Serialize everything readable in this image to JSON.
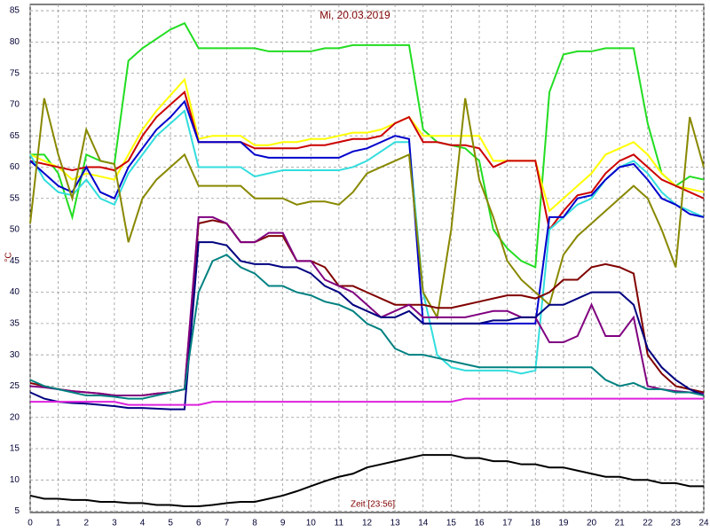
{
  "chart_data": {
    "type": "line",
    "title": "Mi, 20.03.2019",
    "y_label": "°C",
    "x_label": "Zeit [23:56]",
    "x": [
      0,
      0.5,
      1,
      1.5,
      2,
      2.5,
      3,
      3.5,
      4,
      4.5,
      5,
      5.5,
      6,
      6.5,
      7,
      7.5,
      8,
      8.5,
      9,
      9.5,
      10,
      10.5,
      11,
      11.5,
      12,
      12.5,
      13,
      13.5,
      14,
      14.5,
      15,
      15.5,
      16,
      16.5,
      17,
      17.5,
      18,
      18.5,
      19,
      19.5,
      20,
      20.5,
      21,
      21.5,
      22,
      22.5,
      23,
      23.5,
      24
    ],
    "xlim": [
      0,
      24
    ],
    "xticks": [
      0,
      1,
      2,
      3,
      4,
      5,
      6,
      7,
      8,
      9,
      10,
      11,
      12,
      13,
      14,
      15,
      16,
      17,
      18,
      19,
      20,
      21,
      22,
      23,
      24
    ],
    "ylim": [
      4.8,
      86
    ],
    "yticks": [
      5,
      10,
      15,
      20,
      25,
      30,
      35,
      40,
      45,
      50,
      55,
      60,
      65,
      70,
      75,
      80,
      85
    ],
    "grid": true,
    "series": [
      {
        "color": "#22dd22",
        "values": [
          62,
          62,
          59,
          52,
          62,
          61,
          60.5,
          77,
          79,
          80.5,
          82,
          83,
          79,
          79,
          79,
          79,
          79,
          78.5,
          78.5,
          78.5,
          78.5,
          79,
          79,
          79.5,
          79.5,
          79.5,
          79.5,
          79.5,
          66,
          64,
          63.5,
          63,
          61,
          50,
          47,
          45,
          44,
          72,
          78,
          78.5,
          78.5,
          79,
          79,
          79,
          67,
          59,
          57,
          58.5,
          58
        ]
      },
      {
        "color": "#ffff00",
        "values": [
          62,
          61,
          60,
          58,
          59,
          58.5,
          58,
          62,
          66,
          69,
          71.5,
          74,
          64.5,
          65,
          65,
          65,
          63.5,
          63.5,
          64,
          64,
          64.5,
          64.5,
          65,
          65.5,
          65.5,
          66,
          67,
          68,
          65,
          65,
          65,
          65,
          65,
          61,
          61,
          61,
          61,
          53,
          55,
          57,
          59,
          62,
          63,
          64,
          62,
          59,
          57,
          56.5,
          56
        ]
      },
      {
        "color": "#cc0000",
        "values": [
          61,
          60.5,
          60,
          59.5,
          60,
          60,
          59.5,
          61,
          65,
          68,
          70,
          72,
          64,
          64,
          64,
          64,
          63,
          63,
          63,
          63,
          63.5,
          63.5,
          64,
          64.5,
          64.5,
          65,
          67,
          68,
          64,
          64,
          63.5,
          63.5,
          63,
          60,
          61,
          61,
          61,
          50,
          53,
          55.5,
          56,
          59,
          61,
          62,
          60,
          58,
          57,
          56,
          55
        ]
      },
      {
        "color": "#33dddd",
        "values": [
          62,
          58,
          56,
          55.5,
          58,
          55,
          54,
          59,
          62,
          65,
          67,
          69,
          60,
          60,
          60,
          60,
          58.5,
          59,
          59.5,
          59.5,
          59.5,
          59.5,
          59.5,
          60,
          61,
          62.5,
          64,
          64,
          40,
          30,
          28,
          27.5,
          27.5,
          27.5,
          27.5,
          27,
          27.5,
          50,
          52,
          54,
          55,
          58,
          60,
          61,
          59,
          56,
          54,
          53,
          52
        ]
      },
      {
        "color": "#0000cc",
        "values": [
          61,
          59,
          57,
          56,
          60,
          56,
          55,
          60,
          63,
          66,
          68,
          70.5,
          64,
          64,
          64,
          64,
          62,
          61.5,
          61.5,
          61.5,
          61.5,
          61.5,
          61.5,
          62.5,
          63,
          64,
          65,
          64.5,
          35,
          35,
          35,
          35,
          35,
          35,
          35,
          35,
          35,
          52,
          52,
          55,
          55.5,
          58,
          60,
          60.5,
          58,
          55,
          54,
          52.5,
          52
        ]
      },
      {
        "color": "#888800",
        "values": [
          51,
          71,
          62,
          55,
          66,
          61,
          60.5,
          48,
          55,
          58,
          60,
          62,
          57,
          57,
          57,
          57,
          55,
          55,
          55,
          54,
          54.5,
          54.5,
          54,
          56,
          59,
          60,
          61,
          62,
          40,
          36,
          50,
          71,
          58,
          52,
          45,
          42,
          40,
          38,
          46,
          49,
          51,
          53,
          55,
          57,
          55,
          50,
          44,
          68,
          60
        ]
      },
      {
        "color": "#800000",
        "values": [
          25.5,
          25,
          24.5,
          24.2,
          24,
          23.8,
          23.5,
          23.5,
          23.5,
          23.8,
          24,
          24.5,
          51,
          51.5,
          51,
          48,
          48,
          49,
          49,
          45,
          45,
          44,
          41,
          41,
          40,
          39,
          38,
          38,
          38,
          37.5,
          37.5,
          38,
          38.5,
          39,
          39.5,
          39.5,
          39,
          40,
          42,
          42,
          44,
          44.5,
          44,
          43,
          30,
          27,
          25,
          24.5,
          24
        ]
      },
      {
        "color": "#800080",
        "values": [
          25,
          24.8,
          24.5,
          24.2,
          24,
          23.8,
          23.5,
          23.5,
          23.5,
          23.8,
          24,
          24.5,
          52,
          52,
          51,
          48,
          48,
          49.5,
          49.5,
          45,
          45,
          42,
          41,
          40,
          38,
          36,
          37,
          38,
          36,
          36,
          36,
          36,
          36.5,
          37,
          37,
          36,
          36,
          32,
          32,
          33,
          38,
          33,
          33,
          36,
          25,
          24.5,
          24.2,
          24,
          23.8
        ]
      },
      {
        "color": "#000080",
        "values": [
          24,
          23,
          22.5,
          22.3,
          22.2,
          22,
          21.8,
          21.5,
          21.5,
          21.4,
          21.3,
          21.3,
          48,
          48,
          47.5,
          45,
          44.5,
          44.5,
          44,
          44,
          43,
          41,
          40,
          38,
          37,
          36,
          36,
          37,
          35,
          35,
          35,
          35,
          35,
          35.5,
          35.5,
          36,
          36,
          38,
          38,
          39,
          40,
          40,
          40,
          38,
          31,
          28,
          26,
          24.5,
          23.5
        ]
      },
      {
        "color": "#008080",
        "values": [
          26,
          25,
          24.5,
          24,
          23.5,
          23.5,
          23.3,
          23,
          23,
          23.5,
          24,
          24.5,
          40,
          45,
          46,
          44,
          43,
          41,
          41,
          40,
          39.5,
          38.5,
          38,
          37,
          35,
          34,
          31,
          30,
          30,
          29.5,
          29,
          28.5,
          28,
          28,
          28,
          28,
          28,
          28,
          28,
          28,
          28,
          26,
          25,
          25.5,
          24.5,
          24.5,
          24,
          24,
          23.5
        ]
      },
      {
        "color": "#dd22dd",
        "values": [
          22.5,
          22.5,
          22.5,
          22.5,
          22.5,
          22.5,
          22.5,
          22,
          22,
          22,
          22,
          22,
          22,
          22.5,
          22.5,
          22.5,
          22.5,
          22.5,
          22.5,
          22.5,
          22.5,
          22.5,
          22.5,
          22.5,
          22.5,
          22.5,
          22.5,
          22.5,
          22.5,
          22.5,
          22.5,
          23,
          23,
          23,
          23,
          23,
          23,
          23,
          23,
          23,
          23,
          23,
          23,
          23,
          23,
          23,
          23,
          23,
          23
        ]
      },
      {
        "color": "#000000",
        "values": [
          7.5,
          7,
          7,
          6.8,
          6.8,
          6.5,
          6.5,
          6.3,
          6.3,
          6,
          6,
          5.8,
          5.8,
          6,
          6.3,
          6.5,
          6.5,
          7,
          7.5,
          8.2,
          9,
          9.8,
          10.5,
          11,
          12,
          12.5,
          13,
          13.5,
          14,
          14,
          14,
          13.5,
          13.5,
          13,
          13,
          12.5,
          12.5,
          12,
          12,
          11.5,
          11,
          10.5,
          10.5,
          10,
          10,
          9.5,
          9.5,
          9,
          9
        ]
      }
    ]
  }
}
